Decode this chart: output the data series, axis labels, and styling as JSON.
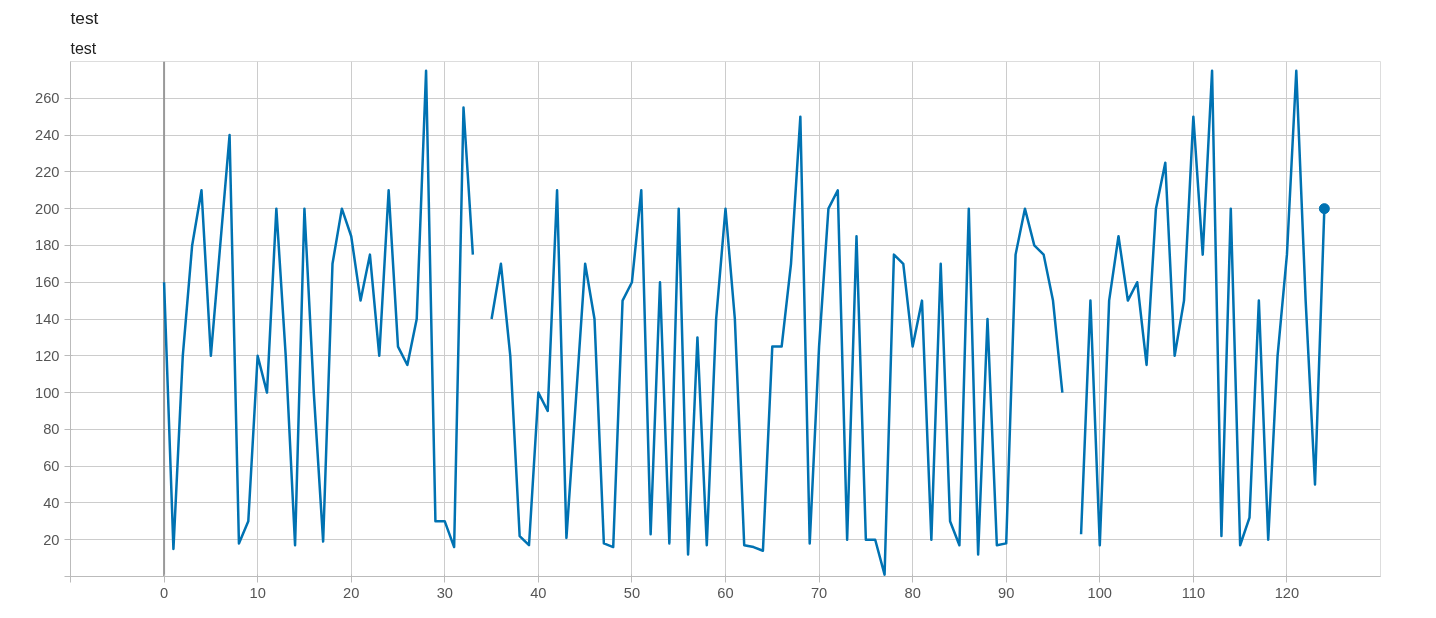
{
  "chart_data": {
    "type": "line",
    "title": "test",
    "subtitle": "test",
    "x": [
      0,
      1,
      2,
      3,
      4,
      5,
      6,
      7,
      8,
      9,
      10,
      11,
      12,
      13,
      14,
      15,
      16,
      17,
      18,
      19,
      20,
      21,
      22,
      23,
      24,
      25,
      26,
      27,
      28,
      29,
      30,
      31,
      32,
      33,
      34,
      35,
      36,
      37,
      38,
      39,
      40,
      41,
      42,
      43,
      44,
      45,
      46,
      47,
      48,
      49,
      50,
      51,
      52,
      53,
      54,
      55,
      56,
      57,
      58,
      59,
      60,
      61,
      62,
      63,
      64,
      65,
      66,
      67,
      68,
      69,
      70,
      71,
      72,
      73,
      74,
      75,
      76,
      77,
      78,
      79,
      80,
      81,
      82,
      83,
      84,
      85,
      86,
      87,
      88,
      89,
      90,
      91,
      92,
      93,
      94,
      95,
      96,
      97,
      98,
      99,
      100,
      101,
      102,
      103,
      104,
      105,
      106,
      107,
      108,
      109,
      110,
      111,
      112,
      113,
      114,
      115,
      116,
      117,
      118,
      119,
      120,
      121,
      122,
      123,
      124
    ],
    "series": [
      {
        "color": "#0072b2",
        "values": [
          160,
          15,
          120,
          180,
          210,
          120,
          180,
          240,
          18,
          30,
          120,
          100,
          200,
          120,
          17,
          200,
          100,
          19,
          170,
          200,
          185,
          150,
          175,
          120,
          210,
          125,
          115,
          140,
          275,
          30,
          30,
          16,
          255,
          175,
          null,
          140,
          170,
          120,
          22,
          17,
          100,
          90,
          210,
          21,
          95,
          170,
          140,
          18,
          16,
          150,
          160,
          210,
          23,
          160,
          18,
          200,
          12,
          130,
          17,
          140,
          200,
          140,
          17,
          16,
          14,
          125,
          125,
          170,
          250,
          18,
          125,
          200,
          210,
          20,
          185,
          20,
          20,
          1,
          175,
          170,
          125,
          150,
          20,
          170,
          30,
          17,
          200,
          12,
          140,
          17,
          18,
          175,
          200,
          180,
          175,
          150,
          100,
          null,
          23,
          150,
          17,
          150,
          185,
          150,
          160,
          115,
          200,
          225,
          120,
          150,
          250,
          175,
          275,
          22,
          200,
          17,
          32,
          150,
          20,
          120,
          175,
          275,
          150,
          50,
          200
        ]
      }
    ],
    "xlim": [
      -10,
      130
    ],
    "ylim": [
      0,
      280
    ],
    "xticks": [
      {
        "value": -10,
        "label": null
      },
      0,
      10,
      20,
      30,
      40,
      50,
      60,
      70,
      80,
      90,
      100,
      110,
      120
    ],
    "yticks": [
      {
        "value": 0,
        "label": null
      },
      20,
      40,
      60,
      80,
      100,
      120,
      140,
      160,
      180,
      200,
      220,
      240,
      260
    ],
    "ref_lines": [
      {
        "axis": "x",
        "value": 0,
        "color": "#999999"
      }
    ],
    "grid": true,
    "line_style": "solid"
  }
}
